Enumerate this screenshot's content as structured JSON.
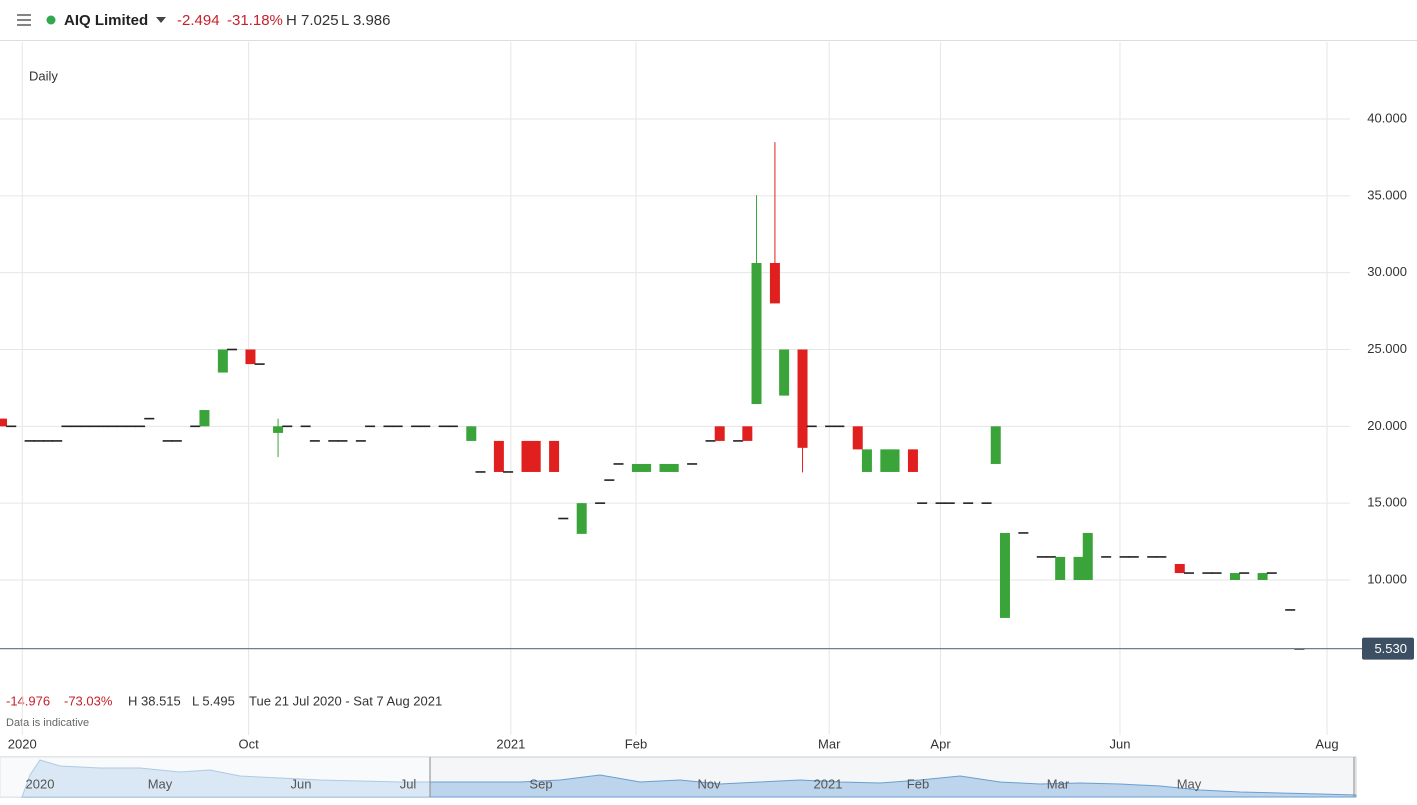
{
  "chart_data": {
    "type": "candlestick",
    "instrument": "AIQ Limited",
    "change": "-2.494",
    "change_pct": "-31.18%",
    "high_label": "H 7.025",
    "low_label": "L 3.986",
    "interval": "Daily",
    "period_change": "-14.976",
    "period_change_pct": "-73.03%",
    "period_high": "H 38.515",
    "period_low": "L 5.495",
    "period_range": "Tue 21 Jul 2020 - Sat 7 Aug 2021",
    "note": "Data is indicative",
    "up_color": "#3aa43a",
    "down_color": "#e0201e",
    "doji_color": "#222222",
    "grid": true,
    "ylim": [
      2.8,
      45
    ],
    "yticks": [
      {
        "value": 10,
        "label": "10.000"
      },
      {
        "value": 15,
        "label": "15.000"
      },
      {
        "value": 20,
        "label": "20.000"
      },
      {
        "value": 25,
        "label": "25.000"
      },
      {
        "value": 30,
        "label": "30.000"
      },
      {
        "value": 35,
        "label": "35.000"
      },
      {
        "value": 40,
        "label": "40.000"
      }
    ],
    "xlim": [
      -0.22,
      146.5
    ],
    "xticks": [
      {
        "value": 2.2,
        "label": "2020"
      },
      {
        "value": 26.8,
        "label": "Oct"
      },
      {
        "value": 55.3,
        "label": "2021"
      },
      {
        "value": 68.9,
        "label": "Feb"
      },
      {
        "value": 89.9,
        "label": "Mar"
      },
      {
        "value": 102,
        "label": "Apr"
      },
      {
        "value": 121.5,
        "label": "Jun"
      },
      {
        "value": 144,
        "label": "Aug"
      }
    ],
    "last_price": {
      "value": 5.53,
      "label": "5.530"
    },
    "navigator_labels": [
      "2020",
      "May",
      "Jun",
      "Jul",
      "Sep",
      "Nov",
      "2021",
      "Feb",
      "Mar",
      "May"
    ],
    "series": [
      {
        "name": "AIQ Limited",
        "x": [
          0,
          1,
          3,
          4,
          5,
          6,
          7,
          8,
          9,
          10,
          11,
          12,
          13,
          14,
          15,
          16,
          18,
          19,
          21,
          22,
          24,
          25,
          27,
          28,
          30,
          31,
          33,
          34,
          36,
          37,
          39,
          40,
          42,
          43,
          45,
          46,
          48,
          49,
          51,
          52,
          54,
          55,
          57,
          58,
          60,
          61,
          63,
          65,
          66,
          67,
          69,
          70,
          72,
          73,
          75,
          77,
          78,
          80,
          81,
          82,
          84,
          85,
          87,
          88,
          90,
          91,
          93,
          94,
          96,
          97,
          99,
          100,
          102,
          103,
          105,
          107,
          108,
          109,
          111,
          113,
          114,
          115,
          117,
          118,
          120,
          122,
          123,
          125,
          126,
          128,
          129,
          131,
          132,
          134,
          135,
          137,
          138,
          140,
          141
        ],
        "open": [
          20.5,
          20,
          19.05,
          19.05,
          19.05,
          19.05,
          20,
          20,
          20,
          20,
          20,
          20,
          20,
          20,
          20,
          20.5,
          19.05,
          19.05,
          20,
          20,
          23.5,
          25,
          25,
          24.05,
          19.57,
          20,
          20,
          19.05,
          19.05,
          19.05,
          19.05,
          20,
          20,
          20,
          20,
          20,
          20,
          20,
          19.05,
          17.03,
          19.05,
          17.03,
          19.05,
          19.05,
          19.05,
          14,
          13,
          15,
          16.5,
          17.55,
          17.03,
          17.03,
          17.03,
          17.03,
          17.55,
          19.05,
          20,
          19.05,
          20,
          21.45,
          30.63,
          22,
          25,
          20,
          20,
          20,
          20,
          17.03,
          17.03,
          17.03,
          18.5,
          15,
          15,
          15,
          15,
          15,
          17.55,
          7.53,
          13.06,
          11.5,
          11.5,
          10,
          10,
          10,
          11.5,
          11.5,
          11.5,
          11.5,
          11.5,
          11.04,
          10.45,
          10.45,
          10.45,
          10,
          10.45,
          10,
          10.45,
          8.05,
          5.51
        ],
        "high": [
          20.5,
          20,
          19.05,
          19.05,
          19.05,
          19.05,
          20,
          20,
          20,
          20,
          20,
          20,
          20,
          20,
          20,
          20.5,
          19.05,
          19.05,
          20,
          21.06,
          25,
          25,
          25,
          24.05,
          20.5,
          20,
          20,
          19.05,
          19.05,
          19.05,
          19.05,
          20,
          20,
          20,
          20,
          20,
          20,
          20,
          20,
          17.03,
          19.05,
          17.03,
          19.05,
          19.05,
          19.05,
          14,
          15,
          15,
          16.5,
          17.55,
          17.55,
          17.55,
          17.55,
          17.55,
          17.55,
          19.05,
          20,
          19.05,
          20,
          35.05,
          38.5,
          25,
          25,
          20,
          20,
          20,
          20,
          18.5,
          18.5,
          18.5,
          18.5,
          15,
          15,
          15,
          15,
          15,
          20,
          13.06,
          13.06,
          11.5,
          11.5,
          11.5,
          11.5,
          13.06,
          11.5,
          11.5,
          11.5,
          11.5,
          11.5,
          11.04,
          10.45,
          10.45,
          10.45,
          10.45,
          10.45,
          10.45,
          10.45,
          8.05,
          5.51
        ],
        "low": [
          20,
          20,
          19.05,
          19.05,
          19.05,
          19.05,
          20,
          20,
          20,
          20,
          20,
          20,
          20,
          20,
          20,
          20.5,
          19.05,
          19.05,
          20,
          20,
          23.5,
          25,
          24.05,
          24.05,
          18,
          20,
          20,
          19.05,
          19.05,
          19.05,
          19.05,
          20,
          20,
          20,
          20,
          20,
          20,
          20,
          19.05,
          17.03,
          17.03,
          17.03,
          17.03,
          17.03,
          17.03,
          14,
          13,
          15,
          16.5,
          17.55,
          17.03,
          17.03,
          17.03,
          17.03,
          17.55,
          19.05,
          19.05,
          19.05,
          19.05,
          21.45,
          28,
          22,
          17,
          20,
          20,
          20,
          18.5,
          17.03,
          17.03,
          17.03,
          17.03,
          15,
          15,
          15,
          15,
          15,
          17.55,
          7.53,
          13.06,
          11.5,
          11.5,
          10,
          10,
          10,
          11.5,
          11.5,
          11.5,
          11.5,
          11.5,
          10.45,
          10.45,
          10.45,
          10.45,
          10,
          10.45,
          10,
          10.45,
          8.05,
          5.51
        ],
        "close": [
          20,
          20,
          19.05,
          19.05,
          19.05,
          19.05,
          20,
          20,
          20,
          20,
          20,
          20,
          20,
          20,
          20,
          20.5,
          19.05,
          19.05,
          20,
          21.06,
          25,
          25,
          24.05,
          24.05,
          20,
          20,
          20,
          19.05,
          19.05,
          19.05,
          19.05,
          20,
          20,
          20,
          20,
          20,
          20,
          20,
          20,
          17.03,
          17.03,
          17.03,
          17.03,
          17.03,
          17.03,
          14,
          15,
          15,
          16.5,
          17.55,
          17.55,
          17.55,
          17.55,
          17.55,
          17.55,
          19.05,
          19.05,
          19.05,
          19.05,
          30.63,
          28,
          25,
          18.6,
          20,
          20,
          20,
          18.5,
          18.5,
          18.5,
          18.5,
          17.03,
          15,
          15,
          15,
          15,
          15,
          20,
          13.06,
          13.06,
          11.5,
          11.5,
          11.5,
          11.5,
          13.06,
          11.5,
          11.5,
          11.5,
          11.5,
          11.5,
          10.45,
          10.45,
          10.45,
          10.45,
          10.45,
          10.45,
          10.45,
          10.45,
          8.05,
          5.51
        ]
      }
    ]
  }
}
